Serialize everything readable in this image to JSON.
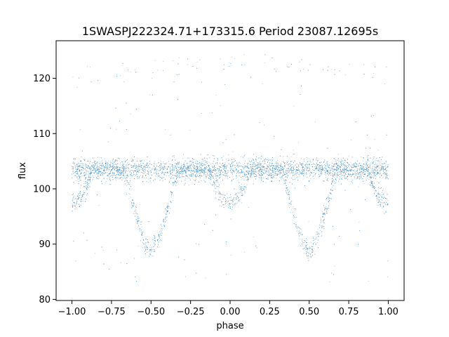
{
  "chart_data": {
    "type": "scatter",
    "title": "1SWASPJ222324.71+173315.6 Period 23087.12695s",
    "xlabel": "phase",
    "ylabel": "flux",
    "xlim": [
      -1.1,
      1.1
    ],
    "ylim": [
      79.8,
      126.8
    ],
    "xticks": [
      {
        "value": -1.0,
        "label": "−1.00"
      },
      {
        "value": -0.75,
        "label": "−0.75"
      },
      {
        "value": -0.5,
        "label": "−0.50"
      },
      {
        "value": -0.25,
        "label": "−0.25"
      },
      {
        "value": 0.0,
        "label": "0.00"
      },
      {
        "value": 0.25,
        "label": "0.25"
      },
      {
        "value": 0.5,
        "label": "0.50"
      },
      {
        "value": 0.75,
        "label": "0.75"
      },
      {
        "value": 1.0,
        "label": "1.00"
      }
    ],
    "yticks": [
      {
        "value": 80,
        "label": "80"
      },
      {
        "value": 90,
        "label": "90"
      },
      {
        "value": 100,
        "label": "100"
      },
      {
        "value": 110,
        "label": "110"
      },
      {
        "value": 120,
        "label": "120"
      }
    ],
    "grid": false,
    "marker_color": "#1f77b4",
    "series": [
      {
        "description_points": [
          [
            -1.0,
            103.5
          ],
          [
            -0.9,
            103.5
          ],
          [
            -0.75,
            103.5
          ],
          [
            -0.5,
            103.5
          ],
          [
            -0.25,
            103.5
          ],
          [
            0.0,
            103.5
          ],
          [
            0.25,
            103.5
          ],
          [
            0.5,
            103.5
          ],
          [
            0.75,
            103.5
          ],
          [
            1.0,
            103.5
          ]
        ],
        "eclipse_points": [
          [
            -0.65,
            101.5
          ],
          [
            -0.6,
            98.0
          ],
          [
            -0.55,
            93.0
          ],
          [
            -0.5,
            89.0
          ],
          [
            -0.45,
            93.0
          ],
          [
            -0.4,
            98.0
          ],
          [
            -0.35,
            101.5
          ],
          [
            -0.1,
            102.0
          ],
          [
            0.0,
            97.5
          ],
          [
            0.1,
            102.0
          ],
          [
            0.35,
            101.5
          ],
          [
            0.4,
            98.0
          ],
          [
            0.45,
            93.0
          ],
          [
            0.5,
            89.0
          ],
          [
            0.55,
            93.0
          ],
          [
            0.6,
            98.0
          ],
          [
            0.65,
            101.5
          ],
          [
            0.9,
            102.0
          ],
          [
            1.0,
            97.5
          ],
          [
            -1.0,
            97.5
          ],
          [
            -0.9,
            102.0
          ]
        ],
        "outlier_band_points": [
          [
            -0.95,
            123.0
          ],
          [
            -0.8,
            121.5
          ],
          [
            -0.05,
            123.0
          ],
          [
            0.2,
            121.5
          ],
          [
            0.95,
            123.0
          ]
        ]
      }
    ]
  }
}
